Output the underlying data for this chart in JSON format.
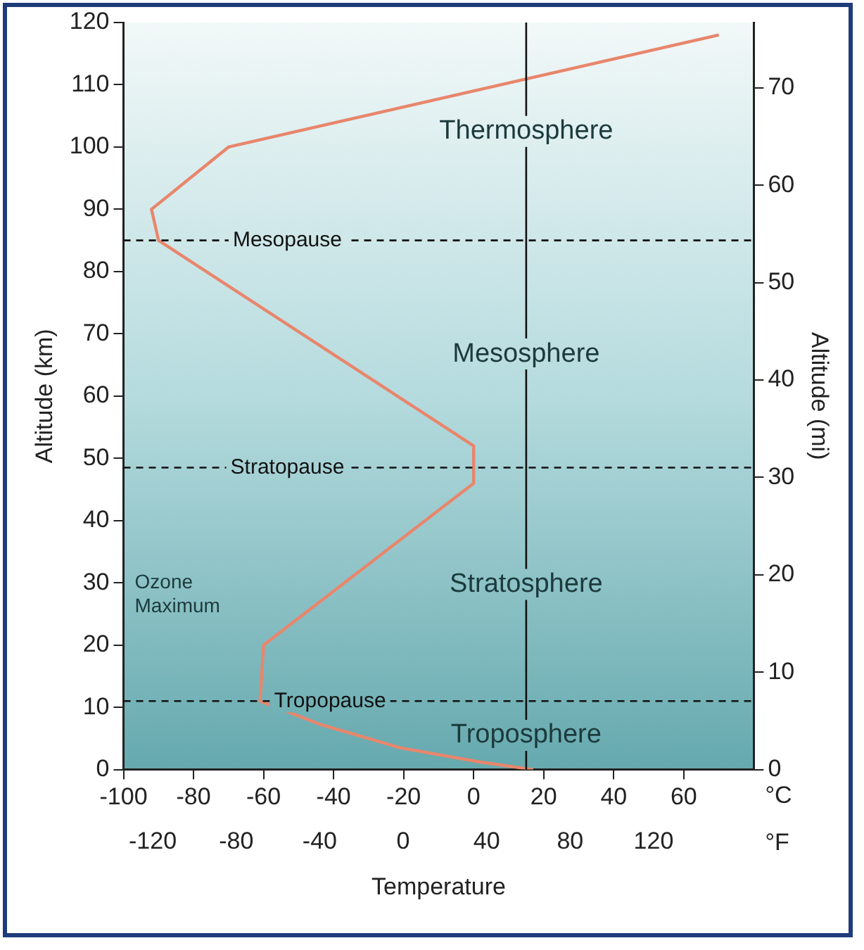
{
  "chart_data": {
    "type": "line",
    "xlabel": "Temperature",
    "ylabel": "Altitude (km)",
    "y2label": "Altitude (mi)",
    "x": [
      17,
      2,
      -21,
      -44,
      -61,
      -60,
      0,
      0,
      -90,
      -92,
      -70,
      70
    ],
    "series": [
      {
        "color": "#e8866c",
        "values": [
          0,
          1.2,
          3.5,
          7.3,
          11,
          20,
          46,
          52,
          85,
          90,
          100,
          118
        ]
      }
    ],
    "xlim": [
      -100,
      80
    ],
    "xticks": [
      -100,
      -80,
      -60,
      -40,
      -20,
      0,
      20,
      40,
      60
    ],
    "x2lim": [
      -134,
      168
    ],
    "x2ticks": [
      -120,
      -80,
      -40,
      0,
      40,
      80,
      120
    ],
    "ylim": [
      0,
      120
    ],
    "yticks": [
      0,
      10,
      20,
      30,
      40,
      50,
      60,
      70,
      80,
      90,
      100,
      110,
      120
    ],
    "y2lim": [
      0,
      76.7
    ],
    "y2ticks": [
      0,
      10,
      20,
      30,
      40,
      50,
      60,
      70
    ],
    "ref_lines": [
      {
        "axis": "y",
        "value": 85,
        "label": "Mesopause",
        "line_style": "dashed"
      },
      {
        "axis": "y",
        "value": 48.5,
        "label": "Stratopause",
        "line_style": "dashed"
      },
      {
        "axis": "y",
        "value": 11,
        "label": "Tropopause",
        "line_style": "dashed"
      },
      {
        "axis": "x",
        "value": 15,
        "label": null,
        "line_style": "solid"
      }
    ],
    "annotations": [
      "°C",
      "°F",
      "Thermosphere",
      "Mesosphere",
      "Stratosphere",
      "Troposphere",
      "Ozone Maximum"
    ],
    "grid": false,
    "legend": false,
    "marker": "none",
    "line_style": "solid"
  }
}
